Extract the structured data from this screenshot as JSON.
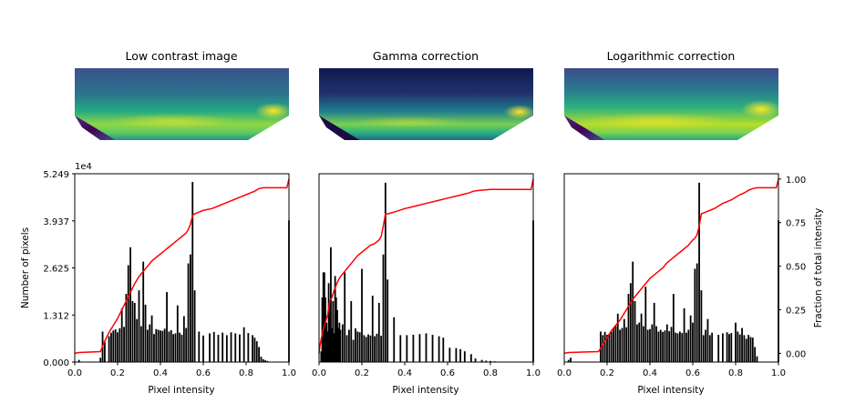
{
  "chart_data": [
    {
      "type": "image",
      "title": "Low contrast image",
      "colormap": "viridis",
      "shape": "bowl-like surface with bright yellow-green band near bottom and dark purple lower-left corner"
    },
    {
      "type": "image",
      "title": "Gamma correction",
      "colormap": "viridis",
      "shape": "darker version of the surface, deep navy top, narrow yellow band"
    },
    {
      "type": "image",
      "title": "Logarithmic correction",
      "colormap": "viridis",
      "shape": "brighter version of the surface, cyan/green top, broad yellow band"
    },
    {
      "type": "bar",
      "histogram_of": "Low contrast image",
      "xlabel": "Pixel intensity",
      "ylabel": "Number of pixels",
      "xlim": [
        0,
        1
      ],
      "ylim": [
        0,
        52490
      ],
      "yticks": [
        0,
        13120,
        26250,
        39370,
        52490
      ],
      "yticklabels": [
        "0.000",
        "1.312",
        "2.625",
        "3.937",
        "5.249"
      ],
      "yoffset_label": "1e4",
      "xticklabels": [
        "0.0",
        "0.2",
        "0.4",
        "0.6",
        "0.8",
        "1.0"
      ],
      "bars": [
        [
          0.02,
          600
        ],
        [
          0.12,
          1200
        ],
        [
          0.13,
          8500
        ],
        [
          0.14,
          5600
        ],
        [
          0.16,
          7200
        ],
        [
          0.17,
          8200
        ],
        [
          0.18,
          8800
        ],
        [
          0.19,
          9100
        ],
        [
          0.2,
          8300
        ],
        [
          0.21,
          9400
        ],
        [
          0.22,
          15000
        ],
        [
          0.23,
          9800
        ],
        [
          0.24,
          19000
        ],
        [
          0.25,
          27000
        ],
        [
          0.26,
          32000
        ],
        [
          0.27,
          17000
        ],
        [
          0.28,
          16500
        ],
        [
          0.29,
          12000
        ],
        [
          0.3,
          20000
        ],
        [
          0.31,
          10000
        ],
        [
          0.32,
          28000
        ],
        [
          0.33,
          16000
        ],
        [
          0.34,
          9000
        ],
        [
          0.35,
          10500
        ],
        [
          0.36,
          13000
        ],
        [
          0.37,
          7800
        ],
        [
          0.38,
          9200
        ],
        [
          0.39,
          9000
        ],
        [
          0.4,
          8800
        ],
        [
          0.41,
          8700
        ],
        [
          0.42,
          9300
        ],
        [
          0.43,
          19500
        ],
        [
          0.44,
          8500
        ],
        [
          0.45,
          8900
        ],
        [
          0.46,
          7800
        ],
        [
          0.47,
          8000
        ],
        [
          0.48,
          15800
        ],
        [
          0.49,
          8200
        ],
        [
          0.5,
          7600
        ],
        [
          0.51,
          12800
        ],
        [
          0.52,
          9500
        ],
        [
          0.53,
          27500
        ],
        [
          0.54,
          30000
        ],
        [
          0.55,
          50200
        ],
        [
          0.56,
          20000
        ],
        [
          0.58,
          8500
        ],
        [
          0.6,
          7400
        ],
        [
          0.63,
          8000
        ],
        [
          0.65,
          8400
        ],
        [
          0.67,
          7600
        ],
        [
          0.69,
          8200
        ],
        [
          0.71,
          7500
        ],
        [
          0.73,
          8300
        ],
        [
          0.75,
          8000
        ],
        [
          0.77,
          7700
        ],
        [
          0.79,
          9700
        ],
        [
          0.81,
          8100
        ],
        [
          0.83,
          7500
        ],
        [
          0.84,
          6800
        ],
        [
          0.85,
          5800
        ],
        [
          0.86,
          4200
        ],
        [
          0.87,
          1500
        ],
        [
          0.88,
          800
        ],
        [
          0.89,
          500
        ],
        [
          0.9,
          300
        ],
        [
          1.0,
          39500
        ]
      ],
      "series": [
        {
          "name": "Fraction of total intensity",
          "type": "line",
          "color": "#ff0000",
          "x": [
            0.0,
            0.02,
            0.12,
            0.14,
            0.16,
            0.18,
            0.2,
            0.22,
            0.24,
            0.26,
            0.28,
            0.3,
            0.32,
            0.34,
            0.36,
            0.38,
            0.4,
            0.42,
            0.44,
            0.46,
            0.48,
            0.5,
            0.52,
            0.53,
            0.54,
            0.55,
            0.56,
            0.58,
            0.6,
            0.62,
            0.64,
            0.66,
            0.68,
            0.7,
            0.72,
            0.74,
            0.76,
            0.78,
            0.8,
            0.82,
            0.84,
            0.86,
            0.88,
            0.9,
            0.99,
            1.0
          ],
          "y": [
            0.0,
            0.005,
            0.01,
            0.07,
            0.12,
            0.16,
            0.2,
            0.25,
            0.3,
            0.35,
            0.4,
            0.44,
            0.47,
            0.5,
            0.53,
            0.55,
            0.57,
            0.59,
            0.61,
            0.63,
            0.65,
            0.67,
            0.69,
            0.71,
            0.74,
            0.79,
            0.8,
            0.81,
            0.82,
            0.825,
            0.83,
            0.84,
            0.85,
            0.86,
            0.87,
            0.88,
            0.89,
            0.9,
            0.91,
            0.92,
            0.93,
            0.945,
            0.95,
            0.95,
            0.95,
            1.0
          ]
        }
      ]
    },
    {
      "type": "bar",
      "histogram_of": "Gamma correction",
      "xlabel": "Pixel intensity",
      "xlim": [
        0,
        1
      ],
      "ylim": [
        0,
        52490
      ],
      "xticklabels": [
        "0.0",
        "0.2",
        "0.4",
        "0.6",
        "0.8",
        "1.0"
      ],
      "bars": [
        [
          0.01,
          3000
        ],
        [
          0.015,
          18000
        ],
        [
          0.02,
          25000
        ],
        [
          0.025,
          25000
        ],
        [
          0.03,
          18000
        ],
        [
          0.035,
          11000
        ],
        [
          0.04,
          8500
        ],
        [
          0.045,
          22000
        ],
        [
          0.05,
          16000
        ],
        [
          0.055,
          32000
        ],
        [
          0.06,
          9500
        ],
        [
          0.065,
          17000
        ],
        [
          0.07,
          8000
        ],
        [
          0.075,
          24000
        ],
        [
          0.08,
          18000
        ],
        [
          0.085,
          14500
        ],
        [
          0.09,
          9500
        ],
        [
          0.095,
          11000
        ],
        [
          0.1,
          9000
        ],
        [
          0.11,
          10500
        ],
        [
          0.12,
          25000
        ],
        [
          0.13,
          7500
        ],
        [
          0.14,
          9000
        ],
        [
          0.15,
          17000
        ],
        [
          0.16,
          6200
        ],
        [
          0.17,
          9400
        ],
        [
          0.18,
          8500
        ],
        [
          0.19,
          8300
        ],
        [
          0.2,
          26000
        ],
        [
          0.21,
          7500
        ],
        [
          0.22,
          7000
        ],
        [
          0.23,
          7700
        ],
        [
          0.24,
          7400
        ],
        [
          0.25,
          18500
        ],
        [
          0.26,
          7200
        ],
        [
          0.27,
          7900
        ],
        [
          0.28,
          16500
        ],
        [
          0.29,
          7300
        ],
        [
          0.3,
          30000
        ],
        [
          0.31,
          50000
        ],
        [
          0.32,
          23000
        ],
        [
          0.35,
          12500
        ],
        [
          0.38,
          7500
        ],
        [
          0.41,
          7500
        ],
        [
          0.44,
          7600
        ],
        [
          0.47,
          7800
        ],
        [
          0.5,
          8000
        ],
        [
          0.53,
          7600
        ],
        [
          0.56,
          7200
        ],
        [
          0.58,
          6800
        ],
        [
          0.61,
          4000
        ],
        [
          0.64,
          3900
        ],
        [
          0.66,
          3600
        ],
        [
          0.68,
          3000
        ],
        [
          0.71,
          2200
        ],
        [
          0.73,
          1000
        ],
        [
          0.76,
          600
        ],
        [
          0.78,
          400
        ],
        [
          0.8,
          300
        ],
        [
          0.82,
          200
        ],
        [
          1.0,
          39500
        ]
      ],
      "series": [
        {
          "type": "line",
          "color": "#ff0000",
          "x": [
            0.0,
            0.005,
            0.01,
            0.02,
            0.03,
            0.04,
            0.05,
            0.06,
            0.07,
            0.08,
            0.09,
            0.1,
            0.12,
            0.14,
            0.16,
            0.18,
            0.2,
            0.22,
            0.24,
            0.26,
            0.28,
            0.29,
            0.3,
            0.31,
            0.32,
            0.35,
            0.4,
            0.45,
            0.5,
            0.55,
            0.6,
            0.65,
            0.7,
            0.72,
            0.75,
            0.8,
            0.85,
            0.9,
            0.95,
            0.99,
            1.0
          ],
          "y": [
            0.0,
            0.05,
            0.08,
            0.14,
            0.18,
            0.22,
            0.3,
            0.32,
            0.36,
            0.39,
            0.42,
            0.44,
            0.47,
            0.5,
            0.53,
            0.56,
            0.58,
            0.6,
            0.62,
            0.63,
            0.65,
            0.67,
            0.73,
            0.8,
            0.8,
            0.81,
            0.83,
            0.845,
            0.86,
            0.875,
            0.89,
            0.905,
            0.92,
            0.93,
            0.935,
            0.94,
            0.94,
            0.94,
            0.94,
            0.94,
            1.0
          ]
        }
      ]
    },
    {
      "type": "bar",
      "histogram_of": "Logarithmic correction",
      "xlabel": "Pixel intensity",
      "ylabel_right": "Fraction of total intensity",
      "xlim": [
        0,
        1
      ],
      "ylim": [
        0,
        52490
      ],
      "y2lim": [
        -0.05,
        1.03
      ],
      "y2ticklabels": [
        "0.00",
        "0.25",
        "0.50",
        "0.75",
        "1.00"
      ],
      "xticklabels": [
        "0.0",
        "0.2",
        "0.4",
        "0.6",
        "0.8",
        "1.0"
      ],
      "bars": [
        [
          0.02,
          600
        ],
        [
          0.03,
          1200
        ],
        [
          0.17,
          8500
        ],
        [
          0.18,
          7500
        ],
        [
          0.19,
          8400
        ],
        [
          0.2,
          7600
        ],
        [
          0.21,
          7900
        ],
        [
          0.22,
          8500
        ],
        [
          0.23,
          9500
        ],
        [
          0.24,
          10000
        ],
        [
          0.25,
          13500
        ],
        [
          0.26,
          9000
        ],
        [
          0.27,
          9500
        ],
        [
          0.28,
          12000
        ],
        [
          0.29,
          9700
        ],
        [
          0.3,
          19000
        ],
        [
          0.31,
          22000
        ],
        [
          0.32,
          28000
        ],
        [
          0.33,
          17000
        ],
        [
          0.34,
          10500
        ],
        [
          0.35,
          11000
        ],
        [
          0.36,
          13500
        ],
        [
          0.37,
          10000
        ],
        [
          0.38,
          21000
        ],
        [
          0.39,
          9000
        ],
        [
          0.4,
          9200
        ],
        [
          0.41,
          10500
        ],
        [
          0.42,
          16500
        ],
        [
          0.43,
          10000
        ],
        [
          0.44,
          8500
        ],
        [
          0.45,
          9000
        ],
        [
          0.46,
          8400
        ],
        [
          0.47,
          8800
        ],
        [
          0.48,
          10500
        ],
        [
          0.49,
          8600
        ],
        [
          0.5,
          9800
        ],
        [
          0.51,
          19000
        ],
        [
          0.52,
          8200
        ],
        [
          0.53,
          8000
        ],
        [
          0.54,
          8500
        ],
        [
          0.55,
          8100
        ],
        [
          0.56,
          15000
        ],
        [
          0.57,
          8200
        ],
        [
          0.58,
          9000
        ],
        [
          0.59,
          13000
        ],
        [
          0.6,
          11000
        ],
        [
          0.61,
          26000
        ],
        [
          0.62,
          27500
        ],
        [
          0.63,
          50000
        ],
        [
          0.64,
          20000
        ],
        [
          0.65,
          7500
        ],
        [
          0.66,
          9000
        ],
        [
          0.67,
          12000
        ],
        [
          0.68,
          7500
        ],
        [
          0.69,
          8200
        ],
        [
          0.72,
          7600
        ],
        [
          0.74,
          8000
        ],
        [
          0.76,
          8300
        ],
        [
          0.77,
          7800
        ],
        [
          0.78,
          8100
        ],
        [
          0.8,
          11000
        ],
        [
          0.81,
          8500
        ],
        [
          0.82,
          7700
        ],
        [
          0.83,
          9500
        ],
        [
          0.84,
          7500
        ],
        [
          0.85,
          6500
        ],
        [
          0.86,
          7600
        ],
        [
          0.87,
          7000
        ],
        [
          0.88,
          6800
        ],
        [
          0.89,
          4200
        ],
        [
          0.9,
          1600
        ],
        [
          1.0,
          39500
        ]
      ],
      "series": [
        {
          "type": "line",
          "color": "#ff0000",
          "x": [
            0.0,
            0.02,
            0.16,
            0.18,
            0.2,
            0.22,
            0.24,
            0.26,
            0.28,
            0.3,
            0.32,
            0.34,
            0.36,
            0.38,
            0.4,
            0.42,
            0.44,
            0.46,
            0.48,
            0.5,
            0.52,
            0.54,
            0.56,
            0.58,
            0.6,
            0.61,
            0.62,
            0.63,
            0.64,
            0.66,
            0.68,
            0.7,
            0.72,
            0.74,
            0.76,
            0.78,
            0.8,
            0.82,
            0.84,
            0.86,
            0.88,
            0.9,
            0.99,
            1.0
          ],
          "y": [
            0.0,
            0.005,
            0.01,
            0.05,
            0.09,
            0.13,
            0.16,
            0.19,
            0.23,
            0.27,
            0.31,
            0.34,
            0.37,
            0.4,
            0.43,
            0.45,
            0.47,
            0.49,
            0.52,
            0.54,
            0.56,
            0.58,
            0.6,
            0.62,
            0.65,
            0.66,
            0.68,
            0.73,
            0.8,
            0.81,
            0.82,
            0.83,
            0.845,
            0.86,
            0.87,
            0.88,
            0.895,
            0.91,
            0.92,
            0.935,
            0.945,
            0.95,
            0.95,
            1.0
          ]
        }
      ]
    }
  ]
}
